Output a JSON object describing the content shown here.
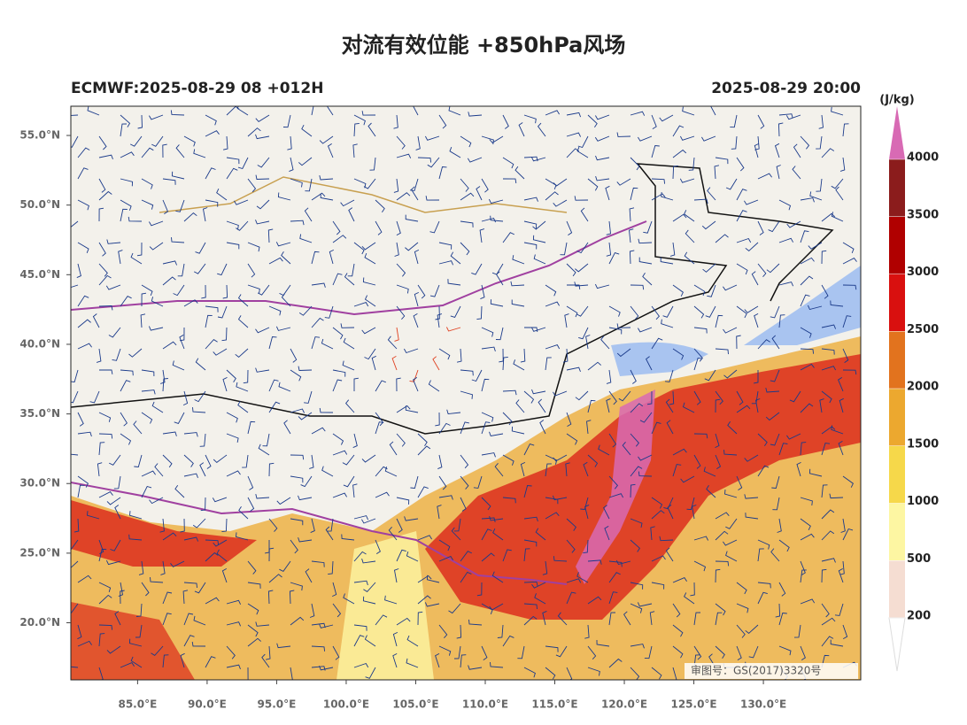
{
  "map": {
    "title": "对流有效位能 +850hPa风场",
    "subtitle_left": "ECMWF:2025-08-29 08 +012H",
    "subtitle_right": "2025-08-29 20:00",
    "watermark": "审图号：GS(2017)3320号",
    "xlim": [
      80.2,
      137.0
    ],
    "ylim": [
      15.9,
      57.1
    ],
    "xticks": [
      {
        "value": 85,
        "label": "85.0°E"
      },
      {
        "value": 90,
        "label": "90.0°E"
      },
      {
        "value": 95,
        "label": "95.0°E"
      },
      {
        "value": 100,
        "label": "100.0°E"
      },
      {
        "value": 105,
        "label": "105.0°E"
      },
      {
        "value": 110,
        "label": "110.0°E"
      },
      {
        "value": 115,
        "label": "115.0°E"
      },
      {
        "value": 120,
        "label": "120.0°E"
      },
      {
        "value": 125,
        "label": "125.0°E"
      },
      {
        "value": 130,
        "label": "130.0°E"
      }
    ],
    "yticks": [
      {
        "value": 20,
        "label": "20.0°N"
      },
      {
        "value": 25,
        "label": "25.0°N"
      },
      {
        "value": 30,
        "label": "30.0°N"
      },
      {
        "value": 35,
        "label": "35.0°N"
      },
      {
        "value": 40,
        "label": "40.0°N"
      },
      {
        "value": 45,
        "label": "45.0°N"
      },
      {
        "value": 50,
        "label": "50.0°N"
      },
      {
        "value": 55,
        "label": "55.0°N"
      }
    ],
    "colorbar": {
      "unit": "(J/kg)",
      "levels": [
        200,
        500,
        1000,
        1500,
        2000,
        2500,
        3000,
        3500,
        4000
      ],
      "colors": [
        "#f5ddd2",
        "#fdf6a2",
        "#f6d84a",
        "#eca82f",
        "#e2731e",
        "#d9100f",
        "#b00000",
        "#8b1c1c"
      ],
      "over_color": "#d86ab4"
    }
  }
}
